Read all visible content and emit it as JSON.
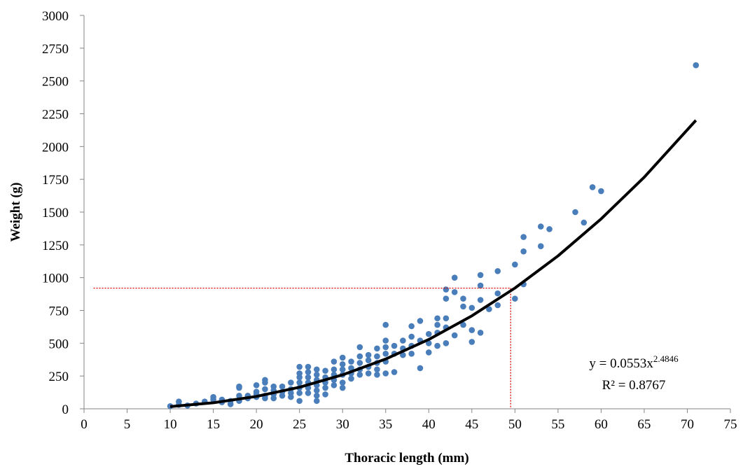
{
  "chart_data": {
    "type": "scatter",
    "xlabel": "Thoracic length (mm)",
    "ylabel": "Weight (g)",
    "xlim": [
      0,
      75
    ],
    "ylim": [
      0,
      3000
    ],
    "xticks": [
      0,
      5,
      10,
      15,
      20,
      25,
      30,
      35,
      40,
      45,
      50,
      55,
      60,
      65,
      70,
      75
    ],
    "yticks": [
      0,
      250,
      500,
      750,
      1000,
      1250,
      1500,
      1750,
      2000,
      2250,
      2500,
      2750,
      3000
    ],
    "series": [
      {
        "color": "#4a7ebb",
        "x": [
          10,
          11,
          11,
          12,
          13,
          14,
          15,
          15,
          16,
          16,
          17,
          17,
          18,
          18,
          18,
          18,
          19,
          19,
          20,
          20,
          20,
          20,
          21,
          21,
          21,
          21,
          21,
          22,
          22,
          22,
          22,
          23,
          23,
          23,
          24,
          24,
          24,
          24,
          25,
          25,
          25,
          25,
          25,
          25,
          25,
          26,
          26,
          26,
          26,
          26,
          26,
          27,
          27,
          27,
          27,
          27,
          27,
          27,
          28,
          28,
          28,
          28,
          28,
          29,
          29,
          29,
          29,
          29,
          30,
          30,
          30,
          30,
          30,
          30,
          31,
          31,
          31,
          31,
          32,
          32,
          32,
          32,
          32,
          33,
          33,
          33,
          33,
          34,
          34,
          34,
          34,
          34,
          35,
          35,
          35,
          35,
          35,
          35,
          36,
          36,
          36,
          37,
          37,
          37,
          38,
          38,
          38,
          38,
          39,
          39,
          39,
          40,
          40,
          40,
          41,
          41,
          41,
          41,
          42,
          42,
          42,
          42,
          42,
          43,
          43,
          43,
          44,
          44,
          44,
          45,
          45,
          45,
          46,
          46,
          46,
          46,
          47,
          48,
          48,
          48,
          50,
          50,
          51,
          51,
          51,
          53,
          53,
          54,
          57,
          58,
          59,
          60,
          71
        ],
        "values": [
          20,
          55,
          30,
          25,
          40,
          55,
          90,
          70,
          50,
          70,
          35,
          60,
          170,
          160,
          100,
          60,
          80,
          100,
          180,
          130,
          110,
          90,
          220,
          200,
          150,
          100,
          80,
          170,
          140,
          110,
          80,
          170,
          130,
          100,
          200,
          150,
          120,
          90,
          320,
          270,
          240,
          200,
          160,
          120,
          60,
          320,
          280,
          240,
          200,
          160,
          120,
          300,
          260,
          220,
          180,
          140,
          100,
          60,
          290,
          240,
          200,
          160,
          110,
          360,
          300,
          260,
          220,
          180,
          390,
          340,
          300,
          260,
          200,
          160,
          360,
          310,
          270,
          230,
          470,
          400,
          350,
          300,
          260,
          410,
          370,
          320,
          270,
          460,
          400,
          350,
          300,
          260,
          640,
          520,
          470,
          420,
          360,
          270,
          480,
          420,
          280,
          520,
          460,
          410,
          630,
          550,
          480,
          420,
          670,
          520,
          310,
          570,
          500,
          430,
          690,
          640,
          580,
          480,
          910,
          840,
          690,
          620,
          500,
          1000,
          890,
          560,
          840,
          780,
          640,
          770,
          600,
          510,
          1020,
          940,
          830,
          580,
          760,
          1050,
          880,
          790,
          1100,
          840,
          1310,
          1200,
          950,
          1390,
          1240,
          1370,
          1500,
          1420,
          1690,
          1660,
          2620
        ]
      }
    ],
    "trendline": {
      "color": "#000000",
      "x": [
        10,
        15,
        20,
        25,
        30,
        35,
        40,
        45,
        50,
        55,
        60,
        65,
        71
      ],
      "values": [
        16.9,
        46.2,
        94.5,
        164.6,
        259,
        379.5,
        528.7,
        708.7,
        920.8,
        1166,
        1448,
        1766,
        2200
      ]
    },
    "reference_lines": [
      {
        "color": "#e00000",
        "x": [
          1.1,
          49.5
        ],
        "values": [
          920,
          920
        ]
      },
      {
        "color": "#e00000",
        "x": [
          49.5,
          49.5
        ],
        "values": [
          920,
          0
        ]
      }
    ],
    "equation": "y = 0.0553x",
    "equation_exponent": "2.4846",
    "r_squared": "R² = 0.8767"
  }
}
